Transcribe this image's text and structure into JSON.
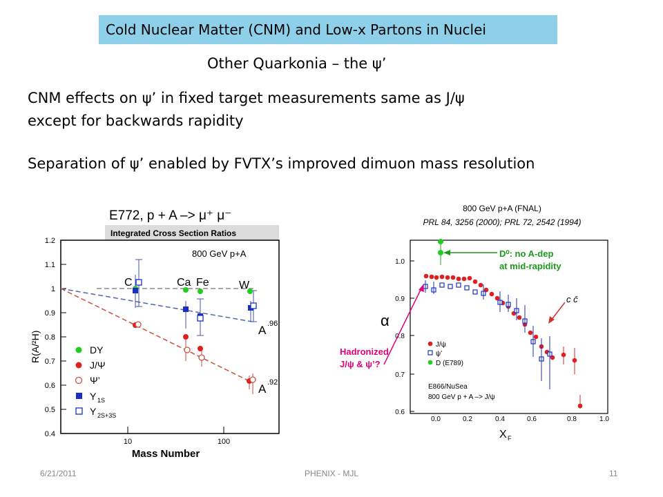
{
  "slide": {
    "title": "Cold Nuclear Matter (CNM) and Low-x Partons in Nuclei",
    "subtitle": "Other Quarkonia – the ψ’",
    "line1": "CNM effects on ψ’ in fixed target measurements same as J/ψ",
    "line2": "except for backwards rapidity",
    "line3": "Separation of ψ’ enabled by FVTX’s improved dimuon mass resolution",
    "footer_date": "6/21/2011",
    "footer_center": "PHENIX - MJL",
    "footer_page": "11"
  },
  "left_plot": {
    "title": "E772,  p + A –> μ⁺ μ⁻",
    "banner": "Integrated Cross Section Ratios",
    "energy_label": "800 GeV p+A",
    "ylabel": "R(A/²H)",
    "xlabel": "Mass Number",
    "yticks": [
      "1.2",
      "1.1",
      "1",
      "0.9",
      "0.8",
      "0.7",
      "0.6",
      "0.5",
      "0.4"
    ],
    "xticks": [
      "10",
      "100"
    ],
    "nucleus_labels": [
      "C",
      "Ca",
      "Fe",
      "W"
    ],
    "fit_label_1": "A",
    "fit_exp_1": ".96",
    "fit_label_2": "A",
    "fit_exp_2": ".92",
    "legend": [
      "DY",
      "J/Ψ",
      "Ψ’",
      "Υ",
      "Υ"
    ],
    "legend_sub": [
      "",
      "",
      "",
      "1S",
      "2S+3S"
    ]
  },
  "right_plot": {
    "header1": "800 GeV p+A (FNAL)",
    "header2": "PRL 84, 3256 (2000); PRL 72, 2542 (1994)",
    "d0_note_1": "D⁰: no A-dep",
    "d0_note_2": "at mid-rapidity",
    "alpha_label": "α",
    "ccbar_label": "c c̄",
    "hadronized_1": "Hadronized",
    "hadronized_2": "J/ψ & ψ’?",
    "legend": [
      "J/ψ",
      "ψ’",
      "D (E789)"
    ],
    "experiment": "E866/NuSea",
    "reaction": "800 GeV p + A –> J/ψ",
    "xlabel": "X",
    "xlabel_sub": "F",
    "yticks": [
      "1.0",
      "0.9",
      "0.8",
      "0.7",
      "0.6"
    ],
    "xticks": [
      "0.0",
      "0.2",
      "0.4",
      "0.6",
      "0.8",
      "1.0"
    ]
  },
  "colors": {
    "title_bg": "#8ecfe9",
    "green": "#22cc22",
    "red": "#e02020",
    "blue": "#1a2fc0",
    "magenta": "#e0007a",
    "note_green": "#1a9a1a",
    "panel_bg": "#dcdcdc"
  }
}
